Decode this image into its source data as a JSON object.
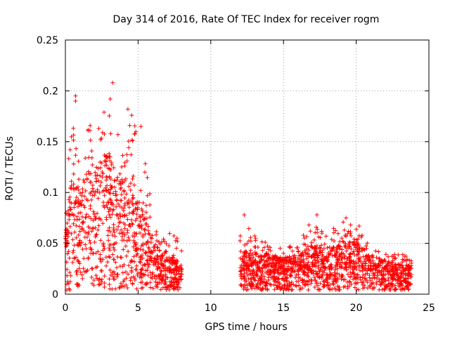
{
  "chart_data": {
    "type": "scatter",
    "title": "Day 314 of 2016, Rate Of TEC Index for receiver rogm",
    "xlabel": "GPS time / hours",
    "ylabel": "ROTI / TECUs",
    "xlim": [
      0,
      25
    ],
    "ylim": [
      0,
      0.25
    ],
    "x_ticks": [
      0,
      5,
      10,
      15,
      20,
      25
    ],
    "x_tick_labels": [
      "0",
      "5",
      "10",
      "15",
      "20",
      "25"
    ],
    "y_ticks": [
      0,
      0.05,
      0.1,
      0.15,
      0.2,
      0.25
    ],
    "y_tick_labels": [
      "0",
      "0.05",
      "0.1",
      "0.15",
      "0.2",
      "0.25"
    ],
    "grid": true,
    "marker": "+",
    "series": [
      {
        "name": "ROTI",
        "color": "#ff0000",
        "segments": [
          {
            "x_range": [
              0.0,
              8.0
            ],
            "profile_x": [
              0,
              0.5,
              1,
              1.5,
              2,
              2.5,
              3,
              3.5,
              4,
              4.5,
              5,
              5.5,
              6,
              6.5,
              7,
              7.5,
              8
            ],
            "profile_y_max": [
              0.1,
              0.19,
              0.14,
              0.17,
              0.16,
              0.17,
              0.21,
              0.17,
              0.15,
              0.18,
              0.16,
              0.13,
              0.08,
              0.06,
              0.065,
              0.06,
              0.05
            ],
            "profile_y_mid": [
              0.045,
              0.075,
              0.06,
              0.075,
              0.07,
              0.085,
              0.085,
              0.07,
              0.07,
              0.065,
              0.055,
              0.045,
              0.03,
              0.025,
              0.022,
              0.02,
              0.018
            ]
          },
          {
            "x_range": [
              12.0,
              23.8
            ],
            "profile_x": [
              12,
              13,
              14,
              15,
              16,
              17,
              18,
              19,
              20,
              21,
              22,
              23,
              23.8
            ],
            "profile_y_max": [
              0.078,
              0.06,
              0.05,
              0.045,
              0.05,
              0.078,
              0.06,
              0.072,
              0.067,
              0.045,
              0.04,
              0.04,
              0.037
            ],
            "profile_y_mid": [
              0.025,
              0.022,
              0.022,
              0.02,
              0.022,
              0.028,
              0.026,
              0.03,
              0.03,
              0.022,
              0.018,
              0.016,
              0.015
            ]
          }
        ],
        "notable_points": [
          {
            "x": 3.25,
            "y": 0.208
          },
          {
            "x": 0.7,
            "y": 0.195
          },
          {
            "x": 0.7,
            "y": 0.19
          },
          {
            "x": 4.3,
            "y": 0.182
          },
          {
            "x": 5.2,
            "y": 0.165
          },
          {
            "x": 12.3,
            "y": 0.078
          },
          {
            "x": 17.3,
            "y": 0.078
          },
          {
            "x": 19.3,
            "y": 0.075
          },
          {
            "x": 20.2,
            "y": 0.067
          }
        ],
        "n_points_estimate": 2400
      }
    ]
  }
}
